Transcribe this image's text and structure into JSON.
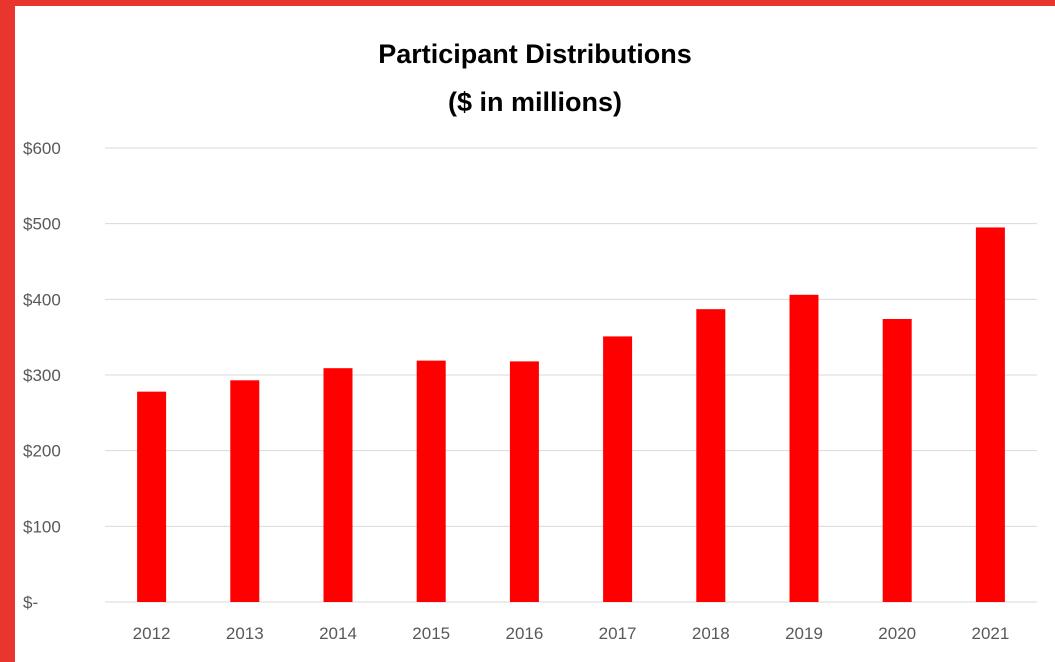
{
  "colors": {
    "frame": "#e8352e",
    "bar": "#ff0000",
    "grid": "#d9d9d9",
    "tick_text": "#595959"
  },
  "chart_data": {
    "type": "bar",
    "title": "Participant Distributions",
    "subtitle": "($ in millions)",
    "categories": [
      "2012",
      "2013",
      "2014",
      "2015",
      "2016",
      "2017",
      "2018",
      "2019",
      "2020",
      "2021"
    ],
    "values": [
      278,
      293,
      309,
      319,
      318,
      351,
      387,
      406,
      374,
      495
    ],
    "ylim": [
      0,
      600
    ],
    "yticks": [
      0,
      100,
      200,
      300,
      400,
      500,
      600
    ],
    "ytick_labels": [
      "$-",
      "$100",
      "$200",
      "$300",
      "$400",
      "$500",
      "$600"
    ],
    "grid": true,
    "legend": "none"
  }
}
